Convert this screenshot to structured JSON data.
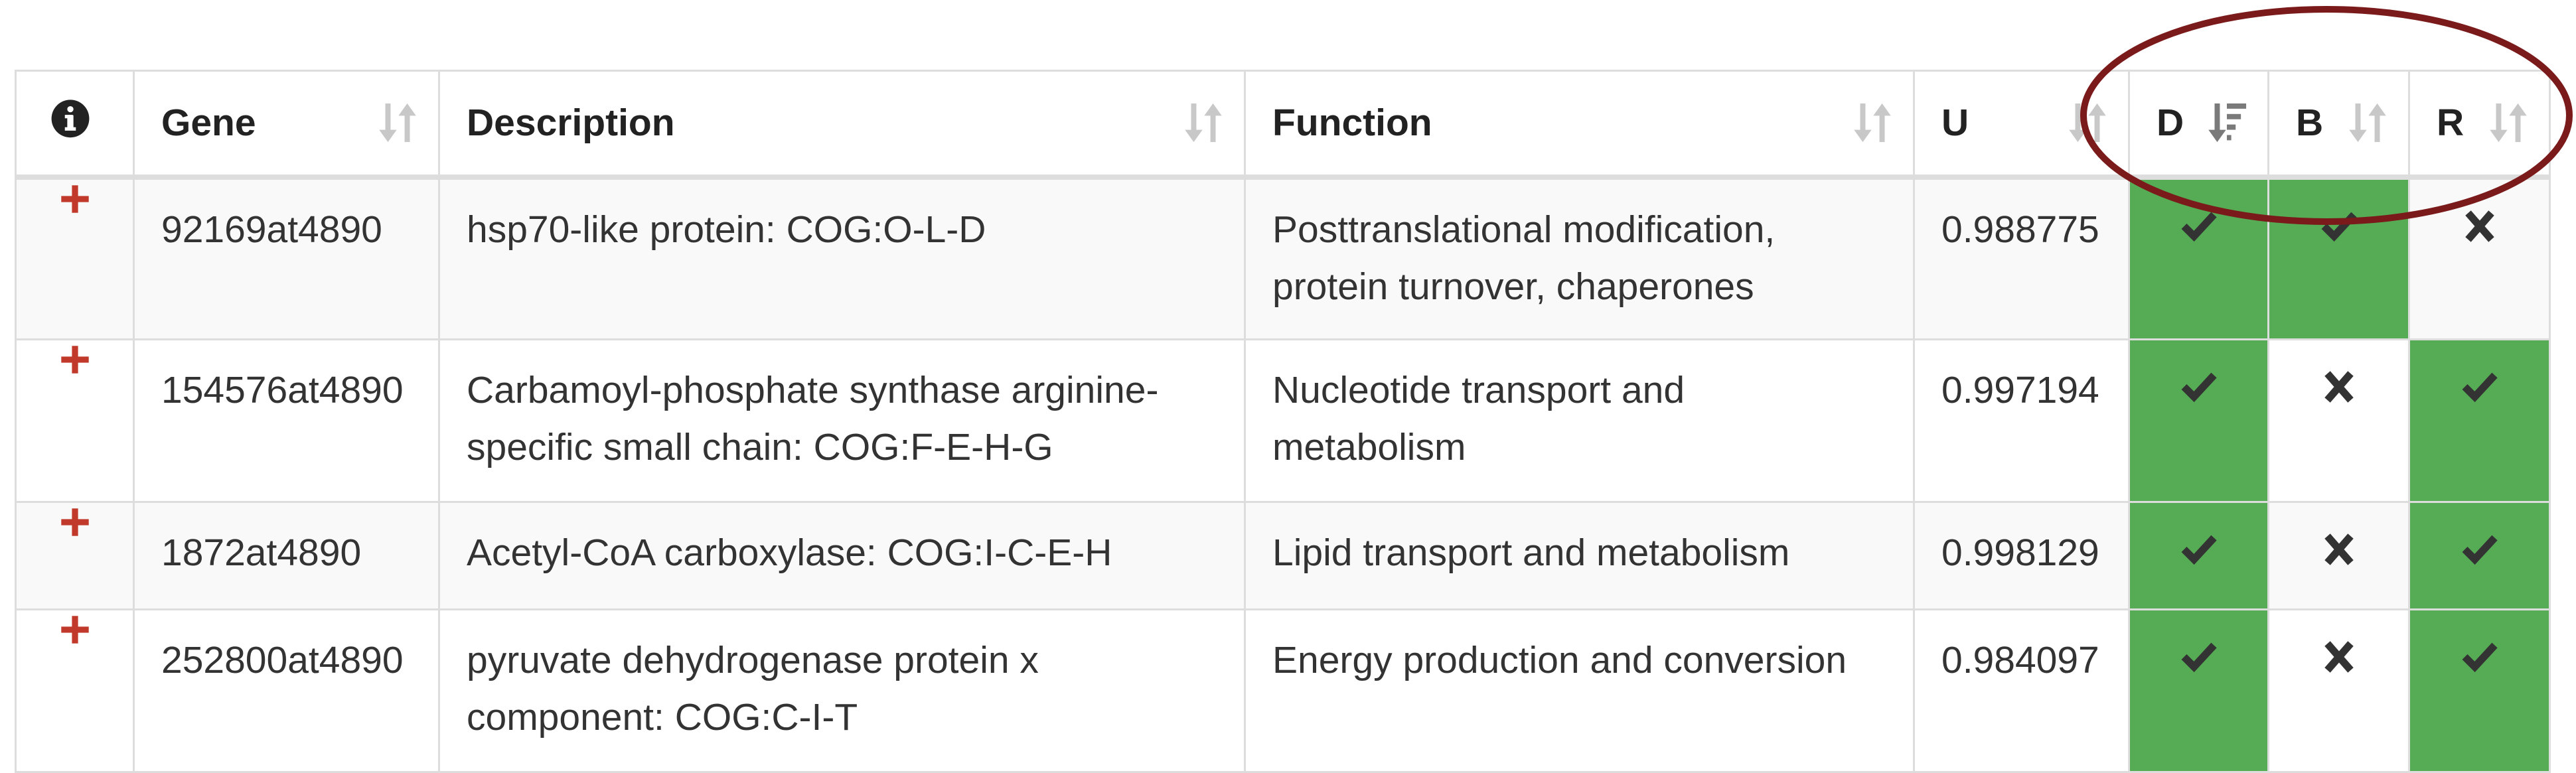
{
  "columns": {
    "info_icon": "info-circle-icon",
    "gene": "Gene",
    "description": "Description",
    "function": "Function",
    "u": "U",
    "d": "D",
    "b": "B",
    "r": "R"
  },
  "rows": [
    {
      "gene": "92169at4890",
      "description": "hsp70-like protein: COG:O-L-D",
      "function_line1": "Posttranslational modification,",
      "function_line2": "protein turnover, chaperones",
      "u": "0.988775",
      "d": true,
      "b": true,
      "r": false
    },
    {
      "gene": "154576at4890",
      "description_line1": "Carbamoyl-phosphate synthase arginine-",
      "description_line2": "specific small chain: COG:F-E-H-G",
      "function_line1": "Nucleotide transport and",
      "function_line2": "metabolism",
      "u": "0.997194",
      "d": true,
      "b": false,
      "r": true
    },
    {
      "gene": "1872at4890",
      "description": "Acetyl-CoA carboxylase: COG:I-C-E-H",
      "function": "Lipid transport and metabolism",
      "u": "0.998129",
      "d": true,
      "b": false,
      "r": true
    },
    {
      "gene": "252800at4890",
      "description_line1": "pyruvate dehydrogenase protein x",
      "description_line2": "component: COG:C-I-T",
      "function": "Energy production and conversion",
      "u": "0.984097",
      "d": true,
      "b": false,
      "r": true
    }
  ],
  "colors": {
    "flag_on": "#55ac55",
    "plus": "#c0392b",
    "annotation": "#7a1a1a"
  },
  "icons": {
    "expand": "plus-icon",
    "yes": "check-icon",
    "no": "cross-icon",
    "sort": "sort-icon",
    "sort_active": "sort-desc-icon"
  }
}
